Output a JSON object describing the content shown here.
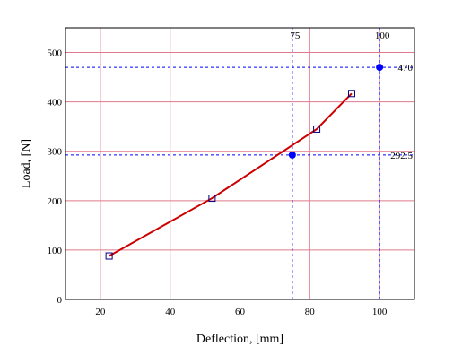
{
  "chart_data": {
    "type": "line",
    "xlabel": "Deflection, [mm]",
    "ylabel": "Load, [N]",
    "xlim": [
      10,
      110
    ],
    "ylim": [
      0,
      550
    ],
    "xticks": [
      "20",
      "40",
      "60",
      "80",
      "100"
    ],
    "yticks": [
      "0",
      "100",
      "200",
      "300",
      "400",
      "500"
    ],
    "grid": true,
    "grid_color": "#e07a8a",
    "series": [
      {
        "color": "#cc0000",
        "marker": "open-square",
        "marker_color": "#000080",
        "x": [
          22.5,
          52,
          82,
          92
        ],
        "y": [
          88,
          205,
          345,
          417
        ]
      },
      {
        "color": "#0000ff",
        "marker": "filled-circle",
        "x": [
          75,
          100
        ],
        "y": [
          292.5,
          470
        ]
      }
    ],
    "reference_lines": [
      {
        "orientation": "vertical",
        "value": 75,
        "label": "75",
        "color": "#0000ff"
      },
      {
        "orientation": "vertical",
        "value": 100,
        "label": "100",
        "color": "#0000ff"
      },
      {
        "orientation": "horizontal",
        "value": 470,
        "label": "470",
        "color": "#0000ff"
      },
      {
        "orientation": "horizontal",
        "value": 292.5,
        "label": "292.5",
        "color": "#0000ff"
      }
    ]
  }
}
